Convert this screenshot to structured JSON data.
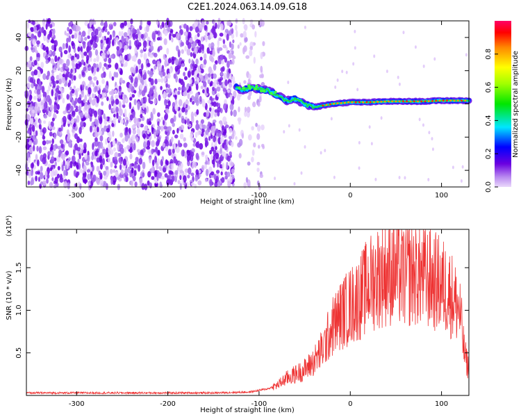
{
  "title": "C2E1.2024.063.14.09.G18",
  "chart_data": [
    {
      "type": "heatmap",
      "xlabel": "Height of straight line (km)",
      "ylabel": "Frequency (Hz)",
      "xlim": [
        -355,
        130
      ],
      "ylim": [
        -50,
        50
      ],
      "x_ticks": [
        -300,
        -200,
        -100,
        0,
        100
      ],
      "y_ticks": [
        -40,
        -20,
        0,
        20,
        40
      ],
      "colorbar": {
        "label": "Normalized spectral amplitude",
        "range": [
          0.0,
          1.0
        ],
        "ticks": [
          0.0,
          0.2,
          0.4,
          0.6,
          0.8
        ]
      },
      "doppler_trace": {
        "x": [
          -125,
          -118,
          -110,
          -100,
          -90,
          -80,
          -70,
          -60,
          -50,
          -40,
          -30,
          -20,
          -10,
          0,
          20,
          40,
          60,
          80,
          100,
          120,
          130
        ],
        "y": [
          10,
          8,
          10,
          9,
          8,
          5,
          2,
          3,
          0,
          -2,
          -1,
          0,
          0.5,
          1,
          1,
          1.5,
          1.5,
          1.5,
          2,
          2,
          2
        ]
      },
      "grid": false
    },
    {
      "type": "line",
      "xlabel": "Height of straight line (km)",
      "ylabel": "SNR (10 * v/v)",
      "yscale_label": "(x10⁴)",
      "xlim": [
        -355,
        130
      ],
      "ylim": [
        0,
        1.95
      ],
      "x_ticks": [
        -300,
        -200,
        -100,
        0,
        100
      ],
      "y_ticks": [
        0.5,
        1.0,
        1.5
      ],
      "series": [
        {
          "color": "#ee3333",
          "x": [
            -355,
            -300,
            -250,
            -200,
            -150,
            -110,
            -100,
            -90,
            -80,
            -70,
            -60,
            -50,
            -40,
            -30,
            -20,
            -10,
            0,
            10,
            20,
            30,
            40,
            50,
            60,
            70,
            80,
            90,
            100,
            110,
            120,
            125,
            130
          ],
          "y": [
            0.03,
            0.03,
            0.03,
            0.03,
            0.03,
            0.04,
            0.06,
            0.08,
            0.12,
            0.2,
            0.25,
            0.3,
            0.4,
            0.55,
            0.8,
            0.95,
            1.05,
            1.15,
            1.3,
            1.4,
            1.45,
            1.45,
            1.4,
            1.45,
            1.4,
            1.35,
            1.3,
            1.2,
            1.0,
            0.5,
            0.3
          ]
        }
      ],
      "grid": false
    }
  ]
}
